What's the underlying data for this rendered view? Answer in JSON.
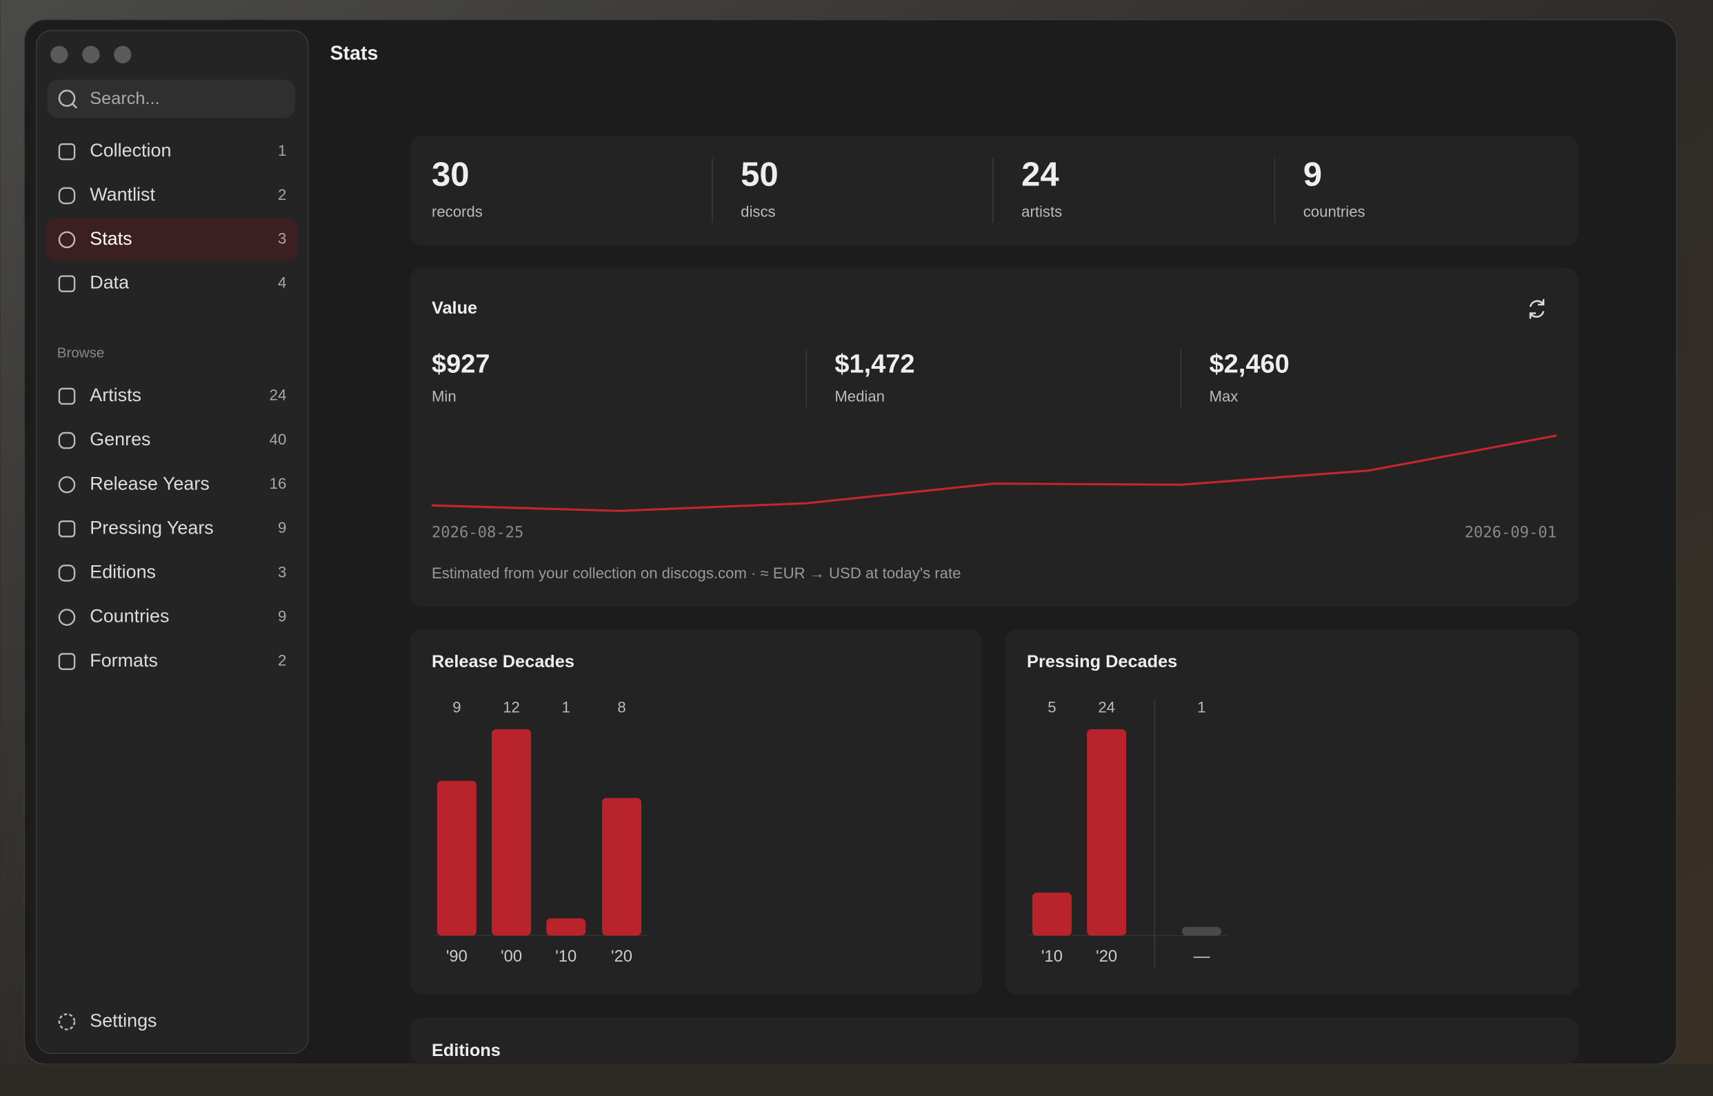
{
  "window": {
    "title": "Stats"
  },
  "sidebar": {
    "search": "Search...",
    "nav": [
      {
        "label": "Collection",
        "count": 1
      },
      {
        "label": "Wantlist",
        "count": 2
      },
      {
        "label": "Stats",
        "count": 3
      },
      {
        "label": "Data",
        "count": 4
      }
    ],
    "browse_heading": "Browse",
    "browse": [
      {
        "label": "Artists",
        "count": 24
      },
      {
        "label": "Genres",
        "count": 40
      },
      {
        "label": "Release Years",
        "count": 16
      },
      {
        "label": "Pressing Years",
        "count": 9
      },
      {
        "label": "Editions",
        "count": 3
      },
      {
        "label": "Countries",
        "count": 9
      },
      {
        "label": "Formats",
        "count": 2
      }
    ],
    "settings": "Settings"
  },
  "summary": [
    {
      "value": 30,
      "label": "records"
    },
    {
      "value": 50,
      "label": "discs"
    },
    {
      "value": 24,
      "label": "artists"
    },
    {
      "value": 9,
      "label": "countries"
    }
  ],
  "value_card": {
    "title": "Value",
    "stats": [
      {
        "value": "$927",
        "label": "Min"
      },
      {
        "value": "$1,472",
        "label": "Median"
      },
      {
        "value": "$2,460",
        "label": "Max"
      }
    ],
    "chart": {
      "type": "line",
      "color": "#c4262e",
      "x_start": "2026-08-25",
      "x_end": "2026-09-01",
      "values": [
        1038,
        927,
        1083,
        1482,
        1460,
        1749,
        2460
      ]
    },
    "note": "Estimated from your collection on discogs.com · ≈ EUR → USD at today's rate"
  },
  "release_decades": {
    "type": "bar",
    "title": "Release Decades",
    "color": "#b8232c",
    "categories": [
      "'90",
      "'00",
      "'10",
      "'20"
    ],
    "values": [
      9,
      12,
      1,
      8
    ]
  },
  "pressing_decades": {
    "type": "bar",
    "title": "Pressing Decades",
    "colors": [
      "#b8232c",
      "#b8232c",
      "#4a4a4a"
    ],
    "categories": [
      "'10",
      "'20",
      "—"
    ],
    "values": [
      5,
      24,
      1
    ]
  },
  "editions": {
    "title": "Editions"
  }
}
